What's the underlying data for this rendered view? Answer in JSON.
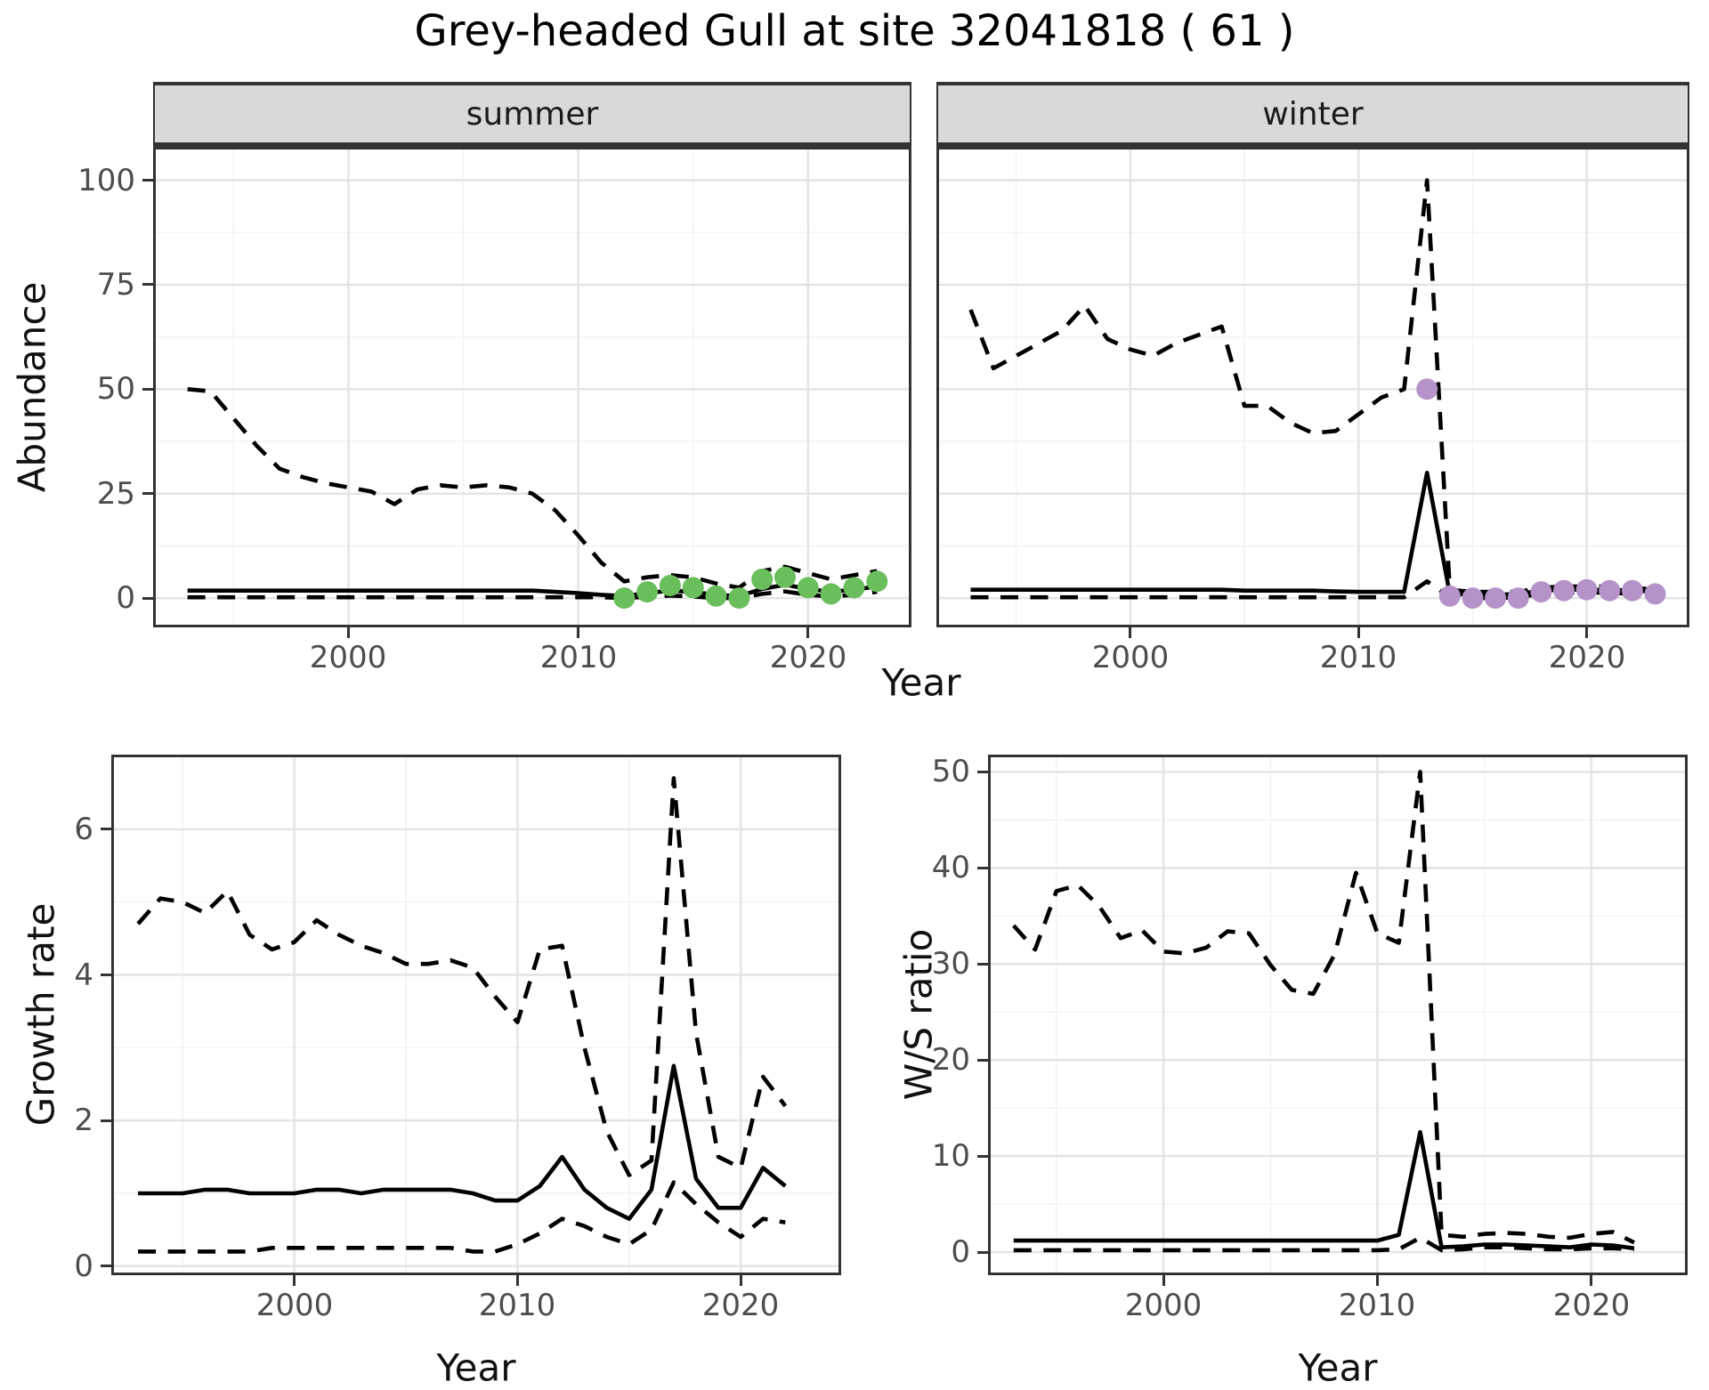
{
  "title": "Grey-headed Gull at site 32041818 ( 61 )",
  "colors": {
    "line": "#000000",
    "panel_border": "#333333",
    "grid_major": "#e4e4e4",
    "grid_minor": "#f3f3f3",
    "tick_text": "#4d4d4d",
    "text": "#1a1a1a",
    "strip_bg": "#d9d9d9",
    "summer_points": "#6abe5c",
    "winter_points": "#b593c9"
  },
  "top_row": {
    "y_label": "Abundance",
    "x_label": "Year",
    "facets": [
      "summer",
      "winter"
    ]
  },
  "bottom_row": {
    "left_y_label": "Growth rate",
    "right_y_label": "W/S ratio",
    "x_label": "Year"
  },
  "chart_data": [
    {
      "id": "summer",
      "type": "line",
      "facet": "summer",
      "xlabel": "Year",
      "ylabel": "Abundance",
      "xlim": [
        1991.5,
        2024.5
      ],
      "ylim": [
        -7,
        108
      ],
      "xticks": [
        2000,
        2010,
        2020
      ],
      "yticks": [
        0,
        25,
        50,
        75,
        100
      ],
      "x": [
        1993,
        1994,
        1995,
        1996,
        1997,
        1998,
        1999,
        2000,
        2001,
        2002,
        2003,
        2004,
        2005,
        2006,
        2007,
        2008,
        2009,
        2010,
        2011,
        2012,
        2013,
        2014,
        2015,
        2016,
        2017,
        2018,
        2019,
        2020,
        2021,
        2022,
        2023
      ],
      "series": [
        {
          "name": "upper-ci",
          "linetype": "dashed",
          "values": [
            50,
            49.5,
            43,
            36.5,
            31,
            29,
            27.5,
            26.5,
            25.5,
            22.5,
            26,
            27,
            26.5,
            27,
            26.5,
            25,
            21,
            15,
            8.5,
            4,
            5,
            5.5,
            5,
            3.5,
            2.5,
            6.5,
            7.5,
            6,
            4.5,
            5.5,
            6.5
          ]
        },
        {
          "name": "estimate",
          "linetype": "solid",
          "values": [
            1.8,
            1.8,
            1.8,
            1.8,
            1.8,
            1.8,
            1.8,
            1.8,
            1.8,
            1.8,
            1.8,
            1.8,
            1.8,
            1.8,
            1.8,
            1.8,
            1.5,
            1.2,
            0.8,
            0.5,
            1.2,
            1.8,
            1.5,
            0.8,
            0.5,
            2.2,
            3.2,
            2.2,
            1.5,
            2,
            2.8
          ]
        },
        {
          "name": "lower-ci",
          "linetype": "dashed",
          "values": [
            0.2,
            0.2,
            0.2,
            0.2,
            0.2,
            0.2,
            0.2,
            0.2,
            0.2,
            0.2,
            0.2,
            0.2,
            0.2,
            0.2,
            0.2,
            0.2,
            0.2,
            0.2,
            0.2,
            0,
            0.3,
            0.6,
            0.4,
            0,
            0,
            1,
            1.6,
            0.8,
            0.4,
            0.8,
            1.5
          ]
        }
      ],
      "points": {
        "name": "observed-count",
        "color": "#6abe5c",
        "data": [
          [
            2012,
            0
          ],
          [
            2013,
            1.5
          ],
          [
            2014,
            3
          ],
          [
            2015,
            2.5
          ],
          [
            2016,
            0.5
          ],
          [
            2017,
            0
          ],
          [
            2018,
            4.5
          ],
          [
            2019,
            5
          ],
          [
            2020,
            2.5
          ],
          [
            2021,
            1
          ],
          [
            2022,
            2.5
          ],
          [
            2023,
            4
          ]
        ]
      }
    },
    {
      "id": "winter",
      "type": "line",
      "facet": "winter",
      "xlabel": "Year",
      "ylabel": "Abundance",
      "xlim": [
        1991.5,
        2024.5
      ],
      "ylim": [
        -7,
        108
      ],
      "xticks": [
        2000,
        2010,
        2020
      ],
      "yticks": [
        0,
        25,
        50,
        75,
        100
      ],
      "x": [
        1993,
        1994,
        1995,
        1996,
        1997,
        1998,
        1999,
        2000,
        2001,
        2002,
        2003,
        2004,
        2005,
        2006,
        2007,
        2008,
        2009,
        2010,
        2011,
        2012,
        2013,
        2014,
        2015,
        2016,
        2017,
        2018,
        2019,
        2020,
        2021,
        2022,
        2023
      ],
      "series": [
        {
          "name": "upper-ci",
          "linetype": "dashed",
          "values": [
            69,
            55,
            58,
            61,
            64,
            70,
            62,
            59.5,
            58,
            61,
            63,
            65,
            46,
            46,
            42,
            39.5,
            40,
            44,
            48,
            50,
            100,
            2,
            1.5,
            1.5,
            1.5,
            2.5,
            2.8,
            2.8,
            2.8,
            2.5,
            2
          ]
        },
        {
          "name": "estimate",
          "linetype": "solid",
          "values": [
            2,
            2,
            2,
            2,
            2,
            2,
            2,
            2,
            2,
            2,
            2,
            2,
            1.8,
            1.8,
            1.8,
            1.8,
            1.6,
            1.5,
            1.5,
            1.5,
            30,
            1,
            0.8,
            0.8,
            1,
            1.8,
            2,
            2,
            2,
            1.8,
            1.5
          ]
        },
        {
          "name": "lower-ci",
          "linetype": "dashed",
          "values": [
            0.2,
            0.2,
            0.2,
            0.2,
            0.2,
            0.2,
            0.2,
            0.2,
            0.2,
            0.2,
            0.2,
            0.2,
            0.2,
            0.2,
            0.2,
            0.2,
            0.2,
            0.2,
            0.2,
            0.2,
            4,
            0.2,
            0,
            0,
            0.2,
            1,
            1.3,
            1.3,
            1.3,
            1,
            0.8
          ]
        }
      ],
      "points": {
        "name": "observed-count",
        "color": "#b593c9",
        "data": [
          [
            2013,
            50
          ],
          [
            2014,
            0.5
          ],
          [
            2015,
            0
          ],
          [
            2016,
            0
          ],
          [
            2017,
            0
          ],
          [
            2018,
            1.5
          ],
          [
            2019,
            1.8
          ],
          [
            2020,
            2
          ],
          [
            2021,
            1.8
          ],
          [
            2022,
            1.8
          ],
          [
            2023,
            1
          ]
        ]
      }
    },
    {
      "id": "growth",
      "type": "line",
      "facet": null,
      "xlabel": "Year",
      "ylabel": "Growth rate",
      "xlim": [
        1991.8,
        2024.5
      ],
      "ylim": [
        -0.125,
        7.025
      ],
      "xticks": [
        2000,
        2010,
        2020
      ],
      "yticks": [
        0,
        2,
        4,
        6
      ],
      "x": [
        1993,
        1994,
        1995,
        1996,
        1997,
        1998,
        1999,
        2000,
        2001,
        2002,
        2003,
        2004,
        2005,
        2006,
        2007,
        2008,
        2009,
        2010,
        2011,
        2012,
        2013,
        2014,
        2015,
        2016,
        2017,
        2018,
        2019,
        2020,
        2021,
        2022
      ],
      "series": [
        {
          "name": "upper-ci",
          "linetype": "dashed",
          "values": [
            4.7,
            5.05,
            5.0,
            4.85,
            5.15,
            4.55,
            4.35,
            4.45,
            4.75,
            4.55,
            4.4,
            4.3,
            4.15,
            4.15,
            4.2,
            4.1,
            3.7,
            3.35,
            4.35,
            4.4,
            3.0,
            1.85,
            1.25,
            1.45,
            6.7,
            3.2,
            1.5,
            1.35,
            2.6,
            2.2
          ]
        },
        {
          "name": "estimate",
          "linetype": "solid",
          "values": [
            1.0,
            1.0,
            1.0,
            1.05,
            1.05,
            1.0,
            1.0,
            1.0,
            1.05,
            1.05,
            1.0,
            1.05,
            1.05,
            1.05,
            1.05,
            1.0,
            0.9,
            0.9,
            1.1,
            1.5,
            1.05,
            0.8,
            0.65,
            1.05,
            2.75,
            1.2,
            0.8,
            0.8,
            1.35,
            1.1
          ]
        },
        {
          "name": "lower-ci",
          "linetype": "dashed",
          "values": [
            0.2,
            0.2,
            0.2,
            0.2,
            0.2,
            0.2,
            0.25,
            0.25,
            0.25,
            0.25,
            0.25,
            0.25,
            0.25,
            0.25,
            0.25,
            0.2,
            0.2,
            0.3,
            0.45,
            0.65,
            0.55,
            0.4,
            0.3,
            0.5,
            1.15,
            0.85,
            0.6,
            0.4,
            0.65,
            0.6
          ]
        }
      ],
      "points": null
    },
    {
      "id": "ws",
      "type": "line",
      "facet": null,
      "xlabel": "Year",
      "ylabel": "W/S ratio",
      "xlim": [
        1991.8,
        2024.5
      ],
      "ylim": [
        -2.4,
        51.8
      ],
      "xticks": [
        2000,
        2010,
        2020
      ],
      "yticks": [
        0,
        10,
        20,
        30,
        40,
        50
      ],
      "x": [
        1993,
        1994,
        1995,
        1996,
        1997,
        1998,
        1999,
        2000,
        2001,
        2002,
        2003,
        2004,
        2005,
        2006,
        2007,
        2008,
        2009,
        2010,
        2011,
        2012,
        2013,
        2014,
        2015,
        2016,
        2017,
        2018,
        2019,
        2020,
        2021,
        2022
      ],
      "series": [
        {
          "name": "upper-ci",
          "linetype": "dashed",
          "values": [
            34,
            31.5,
            37.6,
            38.2,
            36,
            32.7,
            33.5,
            31.3,
            31.1,
            31.7,
            33.4,
            33.2,
            29.9,
            27.3,
            26.9,
            31,
            39.5,
            33.2,
            32.2,
            50,
            1.8,
            1.6,
            1.9,
            2.0,
            1.9,
            1.6,
            1.5,
            1.9,
            2.1,
            1.0
          ]
        },
        {
          "name": "estimate",
          "linetype": "solid",
          "values": [
            1.2,
            1.2,
            1.2,
            1.2,
            1.2,
            1.2,
            1.2,
            1.2,
            1.2,
            1.2,
            1.2,
            1.2,
            1.2,
            1.2,
            1.2,
            1.2,
            1.2,
            1.2,
            1.8,
            12.5,
            0.5,
            0.6,
            0.8,
            0.8,
            0.7,
            0.6,
            0.5,
            0.8,
            0.7,
            0.4
          ]
        },
        {
          "name": "lower-ci",
          "linetype": "dashed",
          "values": [
            0.2,
            0.2,
            0.2,
            0.2,
            0.2,
            0.2,
            0.2,
            0.2,
            0.2,
            0.2,
            0.2,
            0.2,
            0.2,
            0.2,
            0.2,
            0.2,
            0.2,
            0.2,
            0.3,
            1.5,
            0.2,
            0.3,
            0.5,
            0.5,
            0.4,
            0.3,
            0.3,
            0.4,
            0.4,
            0.3
          ]
        }
      ],
      "points": null
    }
  ]
}
